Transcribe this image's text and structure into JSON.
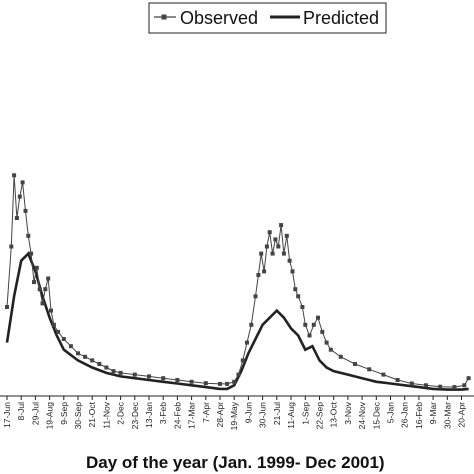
{
  "chart_data": {
    "type": "line",
    "title": "",
    "xlabel": "Day of the year (Jan. 1999- Dec 2001)",
    "ylabel": "",
    "categories": [
      "17-Jun",
      "8-Jul",
      "29-Jul",
      "19-Aug",
      "9-Sep",
      "30-Sep",
      "21-Oct",
      "11-Nov",
      "2-Dec",
      "23-Dec",
      "13-Jan",
      "3-Feb",
      "24-Feb",
      "17-Mar",
      "7-Apr",
      "28-Apr",
      "19-May",
      "9-Jun",
      "30-Jun",
      "21-Jul",
      "11-Aug",
      "1-Sep",
      "22-Sep",
      "13-Oct",
      "3-Nov",
      "24-Nov",
      "15-Dec",
      "5-Jan",
      "26-Jan",
      "16-Feb",
      "9-Mar",
      "30-Mar",
      "20-Apr"
    ],
    "x_domain": [
      0,
      32.6
    ],
    "ylim": [
      0,
      100
    ],
    "grid": false,
    "legend_position": "top-right",
    "series": [
      {
        "name": "Observed",
        "color": "#444444",
        "marker": "square",
        "values": [
          [
            0,
            25
          ],
          [
            0.3,
            42
          ],
          [
            0.5,
            62
          ],
          [
            0.7,
            50
          ],
          [
            0.9,
            56
          ],
          [
            1.1,
            60
          ],
          [
            1.3,
            52
          ],
          [
            1.5,
            45
          ],
          [
            1.7,
            40
          ],
          [
            1.9,
            32
          ],
          [
            2.1,
            36
          ],
          [
            2.3,
            30
          ],
          [
            2.5,
            26
          ],
          [
            2.7,
            30
          ],
          [
            2.9,
            33
          ],
          [
            3.1,
            24
          ],
          [
            3.3,
            20
          ],
          [
            3.6,
            18
          ],
          [
            4,
            16
          ],
          [
            4.5,
            14
          ],
          [
            5,
            12
          ],
          [
            5.5,
            11
          ],
          [
            6,
            10
          ],
          [
            6.5,
            9
          ],
          [
            7,
            8
          ],
          [
            7.5,
            7
          ],
          [
            8,
            6.5
          ],
          [
            9,
            6
          ],
          [
            10,
            5.5
          ],
          [
            11,
            5
          ],
          [
            12,
            4.5
          ],
          [
            13,
            4
          ],
          [
            14,
            3.6
          ],
          [
            15,
            3.4
          ],
          [
            15.5,
            3.4
          ],
          [
            16,
            4
          ],
          [
            16.3,
            6
          ],
          [
            16.6,
            10
          ],
          [
            16.9,
            15
          ],
          [
            17.2,
            20
          ],
          [
            17.5,
            28
          ],
          [
            17.7,
            34
          ],
          [
            17.9,
            40
          ],
          [
            18.1,
            35
          ],
          [
            18.3,
            42
          ],
          [
            18.5,
            46
          ],
          [
            18.7,
            40
          ],
          [
            18.9,
            44
          ],
          [
            19.1,
            42
          ],
          [
            19.3,
            48
          ],
          [
            19.5,
            40
          ],
          [
            19.7,
            45
          ],
          [
            19.9,
            38
          ],
          [
            20.1,
            35
          ],
          [
            20.3,
            30
          ],
          [
            20.5,
            28
          ],
          [
            20.8,
            25
          ],
          [
            21,
            20
          ],
          [
            21.3,
            17
          ],
          [
            21.6,
            20
          ],
          [
            21.9,
            22
          ],
          [
            22.2,
            18
          ],
          [
            22.5,
            15
          ],
          [
            22.8,
            13
          ],
          [
            23.5,
            11
          ],
          [
            24.5,
            9
          ],
          [
            25.5,
            7.5
          ],
          [
            26.5,
            6
          ],
          [
            27.5,
            4.5
          ],
          [
            28.5,
            3.5
          ],
          [
            29.5,
            3
          ],
          [
            30.5,
            2.6
          ],
          [
            31.5,
            2.5
          ],
          [
            32.2,
            3
          ],
          [
            32.5,
            5
          ]
        ]
      },
      {
        "name": "Predicted",
        "color": "#222222",
        "values": [
          [
            0,
            15
          ],
          [
            0.5,
            28
          ],
          [
            1,
            38
          ],
          [
            1.5,
            40
          ],
          [
            2,
            35
          ],
          [
            2.5,
            28
          ],
          [
            3,
            22
          ],
          [
            3.5,
            17
          ],
          [
            4,
            13
          ],
          [
            5,
            10
          ],
          [
            6,
            8
          ],
          [
            7,
            6.5
          ],
          [
            8,
            5.5
          ],
          [
            9,
            5
          ],
          [
            10,
            4.5
          ],
          [
            11,
            4
          ],
          [
            12,
            3.5
          ],
          [
            13,
            3
          ],
          [
            14,
            2.5
          ],
          [
            15,
            2
          ],
          [
            15.5,
            2
          ],
          [
            16,
            3
          ],
          [
            16.5,
            7
          ],
          [
            17,
            12
          ],
          [
            17.5,
            16
          ],
          [
            18,
            20
          ],
          [
            18.5,
            22
          ],
          [
            19,
            24
          ],
          [
            19.5,
            22
          ],
          [
            20,
            19
          ],
          [
            20.5,
            17
          ],
          [
            21,
            13
          ],
          [
            21.5,
            14
          ],
          [
            22,
            10
          ],
          [
            22.5,
            8
          ],
          [
            23,
            7
          ],
          [
            24,
            6
          ],
          [
            25,
            5
          ],
          [
            26,
            4
          ],
          [
            27,
            3.5
          ],
          [
            28,
            3
          ],
          [
            29,
            2.5
          ],
          [
            30,
            2
          ],
          [
            31,
            1.8
          ],
          [
            32,
            1.8
          ],
          [
            32.5,
            2
          ]
        ]
      }
    ]
  }
}
